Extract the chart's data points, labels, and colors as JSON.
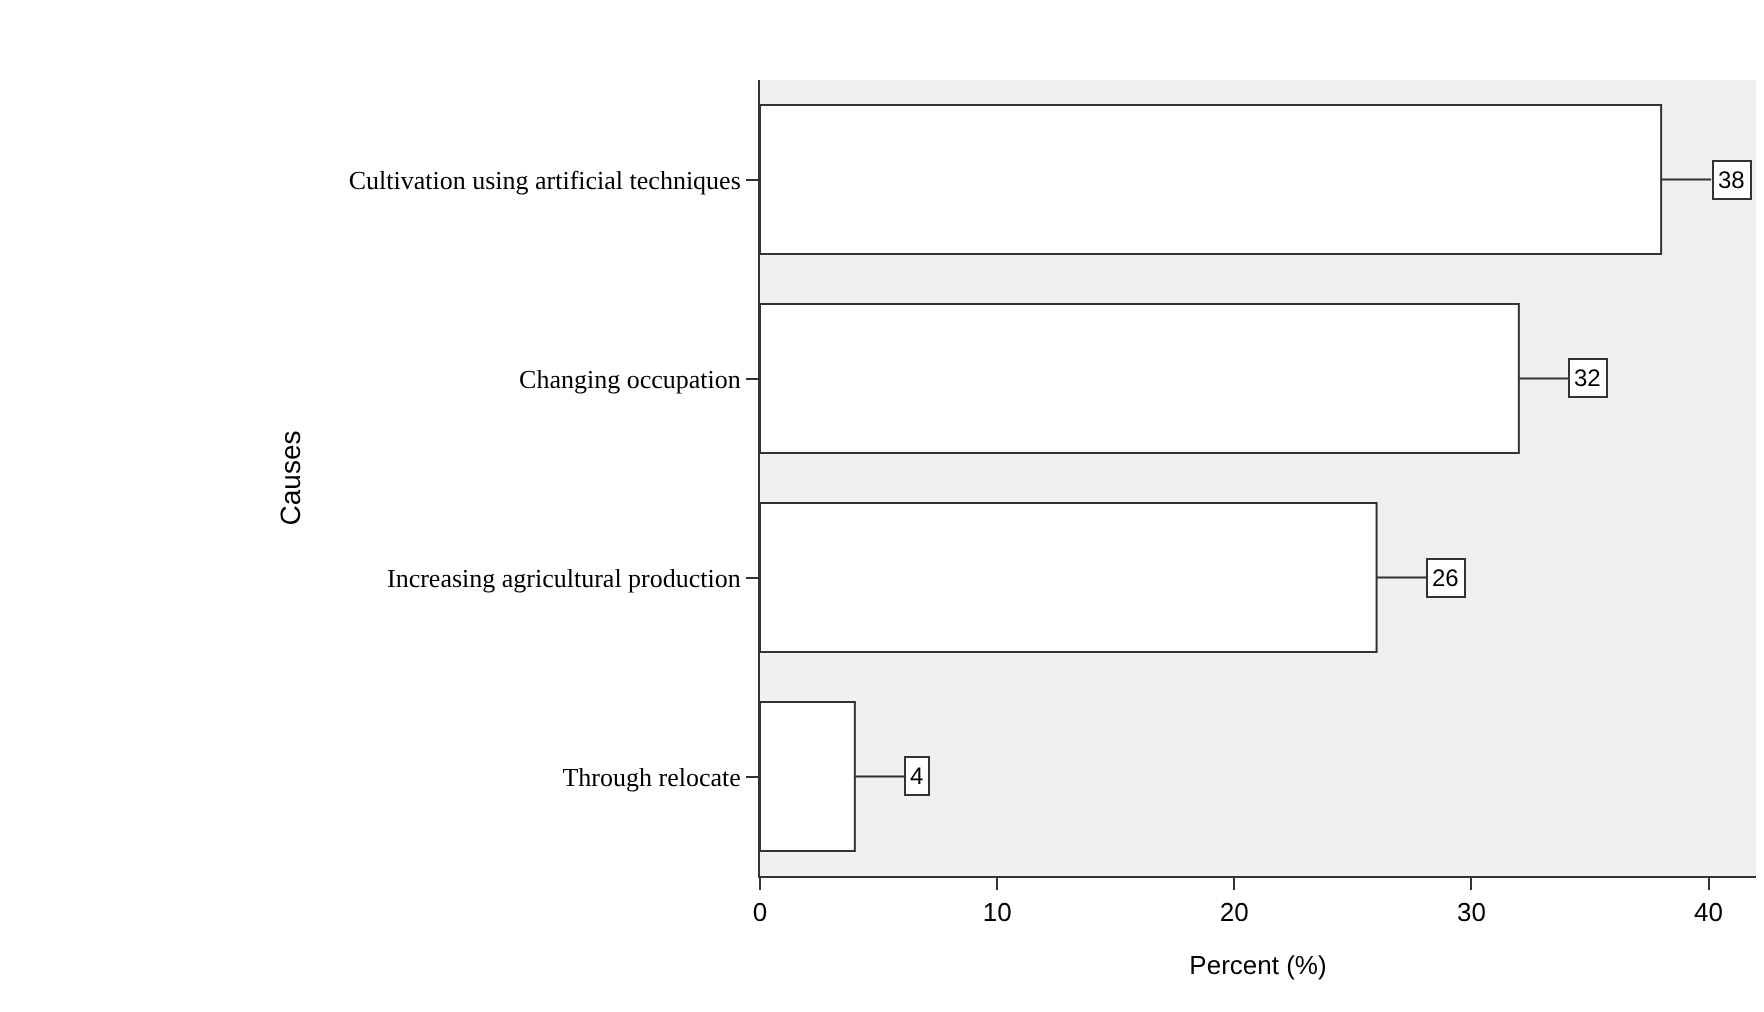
{
  "chart_data": {
    "type": "bar",
    "orientation": "horizontal",
    "xlabel": "Percent (%)",
    "ylabel": "Causes",
    "categories": [
      "Cultivation using artificial techniques",
      "Changing occupation",
      "Increasing agricultural production",
      "Through relocate"
    ],
    "values": [
      38,
      32,
      26,
      4
    ],
    "color": "#ffffff",
    "xlim": [
      0,
      42
    ],
    "xticks": [
      0,
      10,
      20,
      30,
      40
    ],
    "grid": false,
    "data_labels": true
  }
}
